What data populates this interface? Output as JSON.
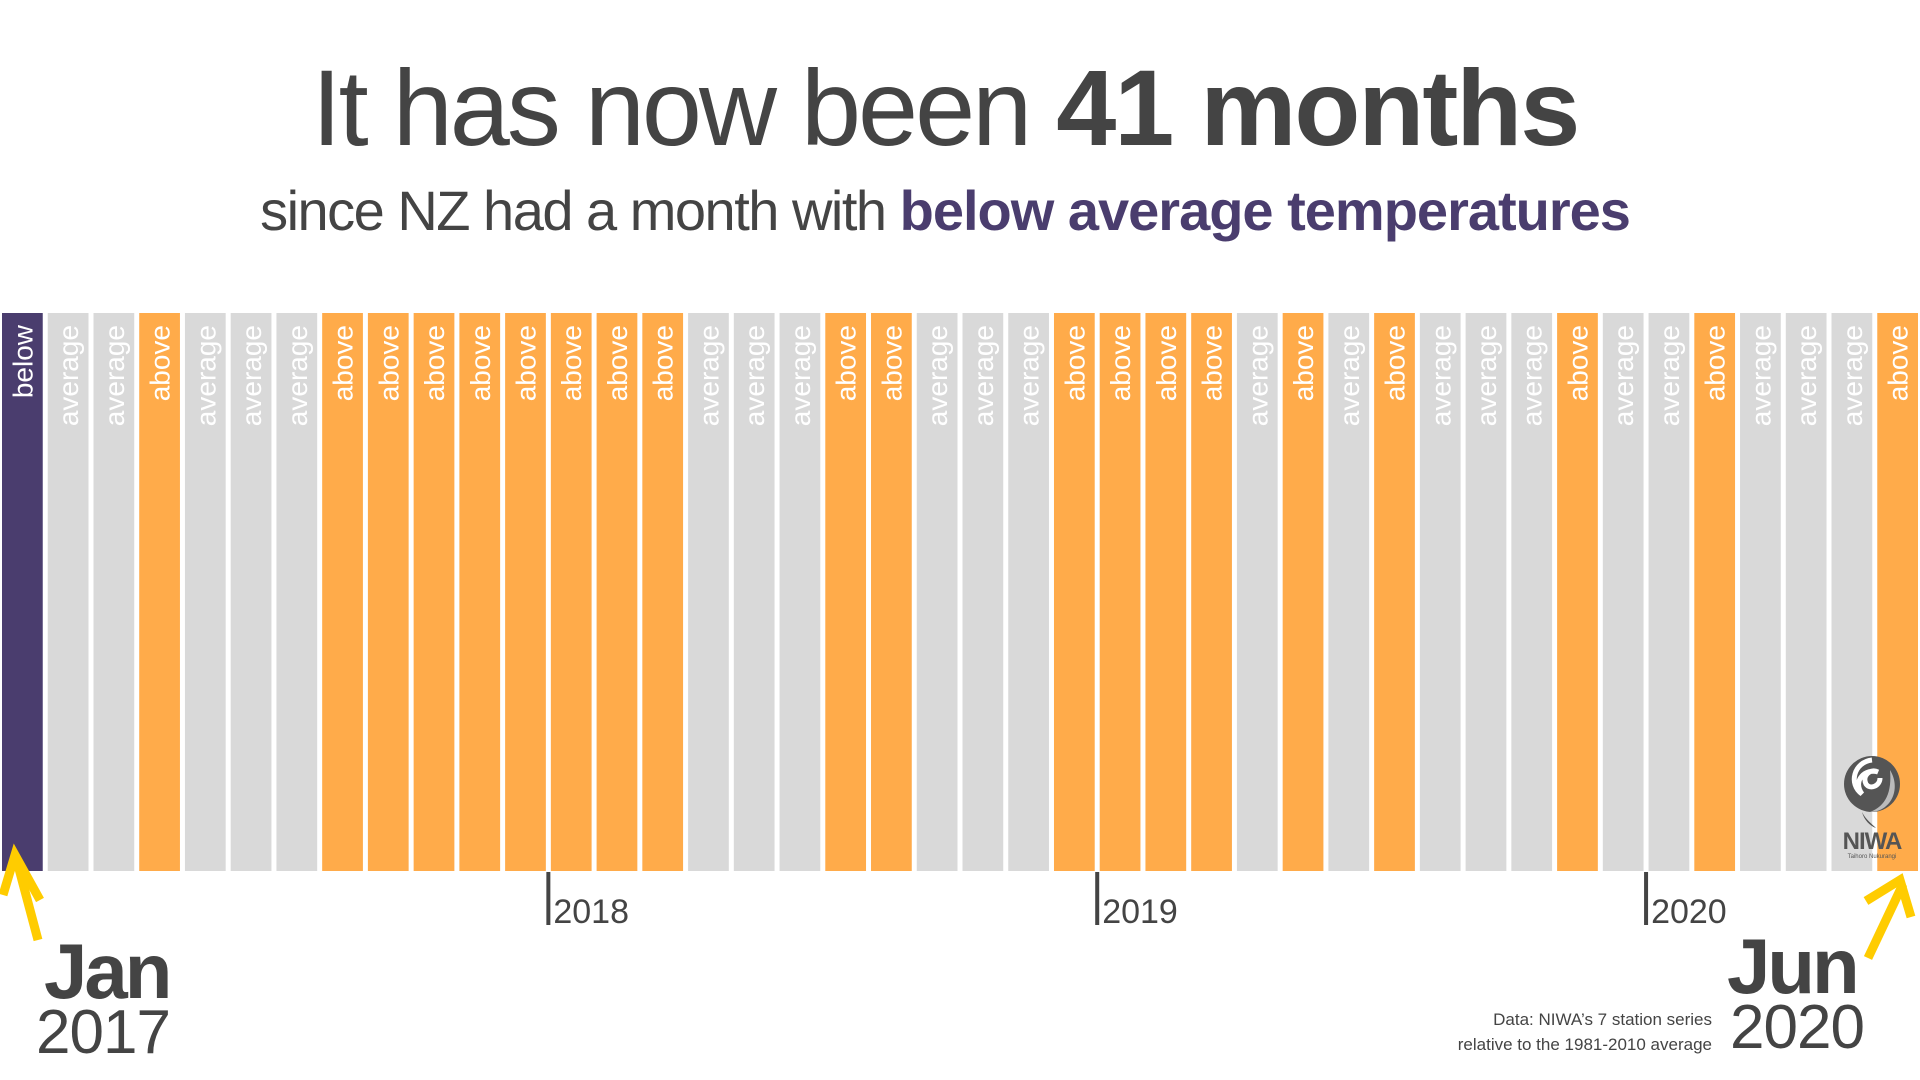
{
  "header": {
    "title_prefix": "It has now been ",
    "title_emphasis": "41 months",
    "subtitle_prefix": "since NZ had a month with ",
    "subtitle_emphasis": "below average temperatures"
  },
  "colors": {
    "below": "#4a3d6e",
    "average": "#d9d9d9",
    "above": "#ffab4a",
    "text": "#444444",
    "arrow": "#ffcc00"
  },
  "start_marker": {
    "month": "Jan",
    "year": "2017"
  },
  "end_marker": {
    "month": "Jun",
    "year": "2020"
  },
  "source": {
    "line1": "Data: NIWA’s 7 station series",
    "line2": "relative to the 1981-2010 average"
  },
  "logo": {
    "name": "NIWA",
    "tagline": "Taihoro Nukurangi"
  },
  "chart_data": {
    "type": "bar",
    "title": "It has now been 41 months since NZ had a month with below average temperatures",
    "xlabel": "",
    "ylabel": "",
    "start": "2017-01",
    "end": "2020-06",
    "categories": [
      "2017-01",
      "2017-02",
      "2017-03",
      "2017-04",
      "2017-05",
      "2017-06",
      "2017-07",
      "2017-08",
      "2017-09",
      "2017-10",
      "2017-11",
      "2017-12",
      "2018-01",
      "2018-02",
      "2018-03",
      "2018-04",
      "2018-05",
      "2018-06",
      "2018-07",
      "2018-08",
      "2018-09",
      "2018-10",
      "2018-11",
      "2018-12",
      "2019-01",
      "2019-02",
      "2019-03",
      "2019-04",
      "2019-05",
      "2019-06",
      "2019-07",
      "2019-08",
      "2019-09",
      "2019-10",
      "2019-11",
      "2019-12",
      "2020-01",
      "2020-02",
      "2020-03",
      "2020-04",
      "2020-05",
      "2020-06"
    ],
    "values": [
      "below",
      "average",
      "average",
      "above",
      "average",
      "average",
      "average",
      "above",
      "above",
      "above",
      "above",
      "above",
      "above",
      "above",
      "above",
      "average",
      "average",
      "average",
      "above",
      "above",
      "average",
      "average",
      "average",
      "above",
      "above",
      "above",
      "above",
      "average",
      "above",
      "average",
      "above",
      "average",
      "average",
      "average",
      "above",
      "average",
      "average",
      "above",
      "average",
      "average",
      "average",
      "above"
    ],
    "legend_labels": {
      "below": "below",
      "average": "average",
      "above": "above"
    },
    "year_ticks": [
      {
        "label": "2018",
        "month_index": 12
      },
      {
        "label": "2019",
        "month_index": 24
      },
      {
        "label": "2020",
        "month_index": 36
      }
    ],
    "grid": false,
    "legend": "none"
  }
}
